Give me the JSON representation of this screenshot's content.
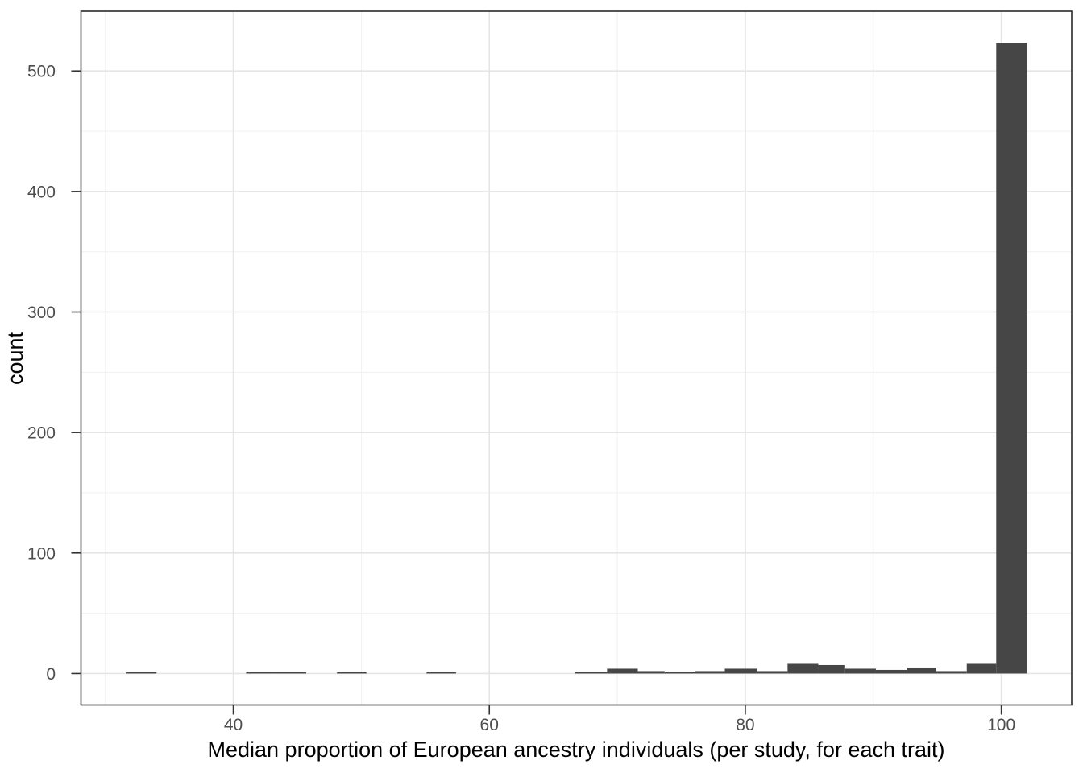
{
  "chart_data": {
    "type": "bar",
    "subtype": "histogram",
    "title": "",
    "xlabel": "Median proportion of European ancestry individuals (per study, for each trait)",
    "ylabel": "count",
    "legend": false,
    "grid": true,
    "xlim": [
      28.1,
      105.5
    ],
    "ylim": [
      -26.1,
      549.6
    ],
    "x_ticks": [
      40,
      60,
      80,
      100
    ],
    "x_minor_ticks": [
      30,
      50,
      70,
      90
    ],
    "y_ticks": [
      0,
      100,
      200,
      300,
      400,
      500
    ],
    "y_minor_ticks": [
      50,
      150,
      250,
      350,
      450
    ],
    "binwidth": 2.4,
    "total_count": 581,
    "bins": [
      {
        "x0": 31.6,
        "x1": 34.0,
        "count": 1
      },
      {
        "x0": 41.0,
        "x1": 43.4,
        "count": 1
      },
      {
        "x0": 43.4,
        "x1": 45.7,
        "count": 1
      },
      {
        "x0": 48.1,
        "x1": 50.4,
        "count": 1
      },
      {
        "x0": 55.1,
        "x1": 57.4,
        "count": 1
      },
      {
        "x0": 66.7,
        "x1": 69.2,
        "count": 1
      },
      {
        "x0": 69.2,
        "x1": 71.6,
        "count": 4
      },
      {
        "x0": 71.6,
        "x1": 73.7,
        "count": 2
      },
      {
        "x0": 73.7,
        "x1": 76.1,
        "count": 1
      },
      {
        "x0": 76.1,
        "x1": 78.4,
        "count": 2
      },
      {
        "x0": 78.4,
        "x1": 80.9,
        "count": 4
      },
      {
        "x0": 80.9,
        "x1": 83.3,
        "count": 2
      },
      {
        "x0": 83.3,
        "x1": 85.7,
        "count": 8
      },
      {
        "x0": 85.7,
        "x1": 87.8,
        "count": 7
      },
      {
        "x0": 87.8,
        "x1": 90.2,
        "count": 4
      },
      {
        "x0": 90.2,
        "x1": 92.6,
        "count": 3
      },
      {
        "x0": 92.6,
        "x1": 94.9,
        "count": 5
      },
      {
        "x0": 94.9,
        "x1": 97.3,
        "count": 2
      },
      {
        "x0": 97.3,
        "x1": 99.6,
        "count": 8
      },
      {
        "x0": 99.6,
        "x1": 102.0,
        "count": 523
      }
    ],
    "colors": {
      "bar_fill": "#464646",
      "grid_major": "#e5e5e5",
      "grid_minor": "#f1f1f1",
      "panel_border": "#2a2a2a",
      "tick_mark": "#333333",
      "tick_label": "#4d4d4d",
      "axis_title": "#000000",
      "panel_background": "#ffffff"
    }
  }
}
